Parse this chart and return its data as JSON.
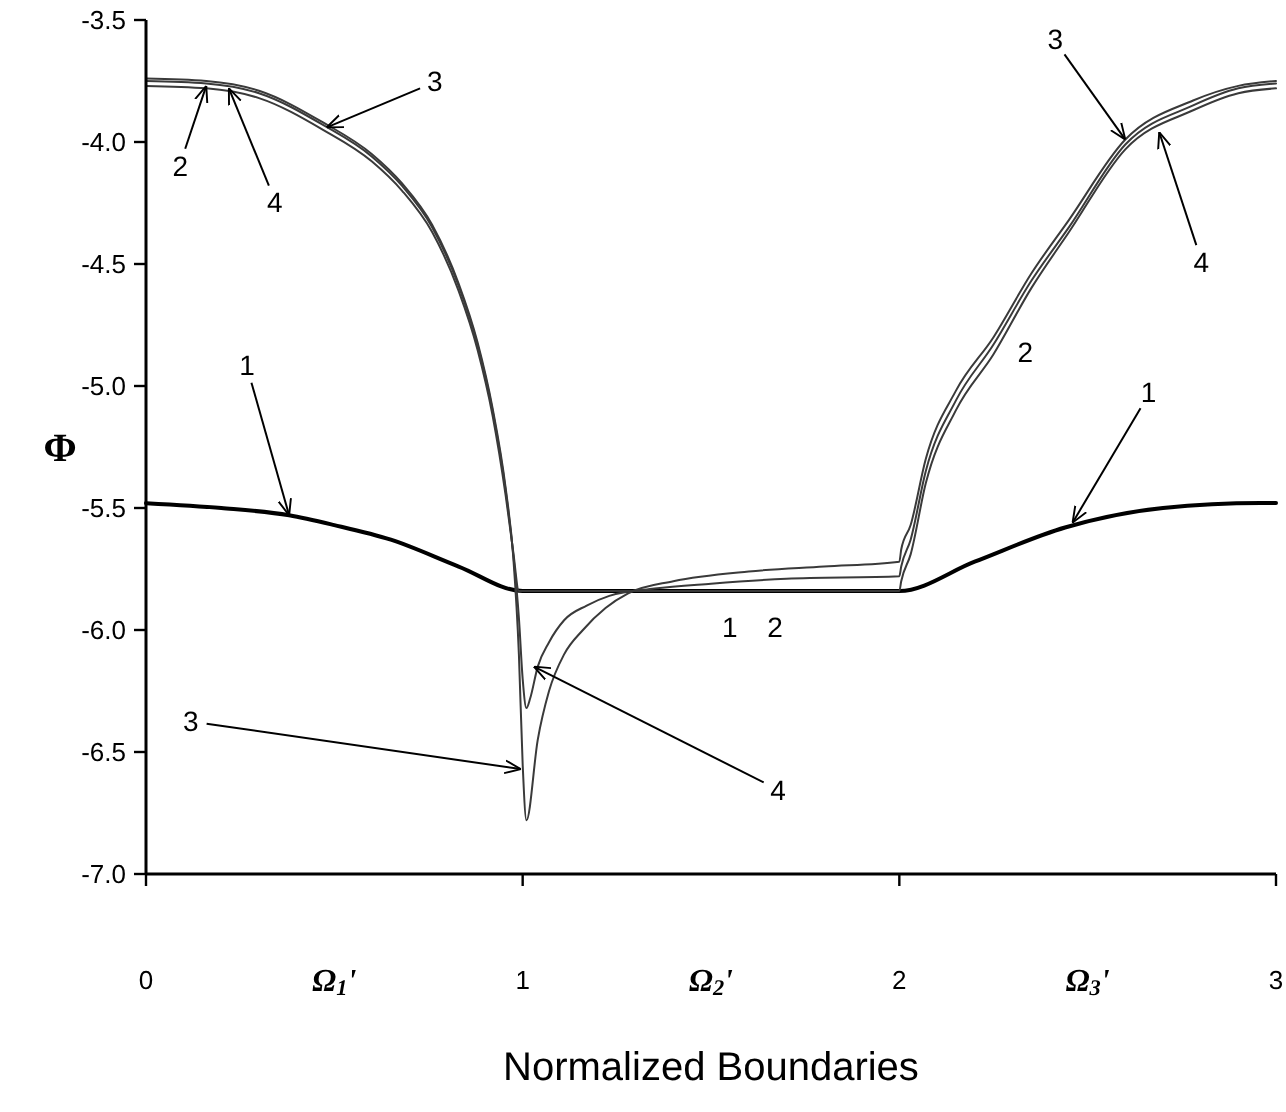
{
  "chart_data": {
    "type": "line",
    "xlabel": "Normalized Boundaries",
    "ylabel": "Φ",
    "xlim": [
      0,
      3
    ],
    "ylim": [
      -7.0,
      -3.5
    ],
    "xticks": [
      0,
      {
        "value": 0.5,
        "label": "Ω$_{1}$'"
      },
      1,
      {
        "value": 1.5,
        "label": "Ω$_{2}$'"
      },
      2,
      {
        "value": 2.5,
        "label": "Ω$_{3}$'"
      },
      3
    ],
    "yticks": [
      {
        "value": -7.0,
        "label": "-7.0"
      },
      -6.5,
      {
        "value": -6.0,
        "label": "-6.0"
      },
      -5.5,
      {
        "value": -5.0,
        "label": "-5.0"
      },
      -4.5,
      {
        "value": -4.0,
        "label": "-4.0"
      },
      -3.5
    ],
    "grid": false,
    "marker": "none",
    "line_style": "solid",
    "series": [
      {
        "color": "#000000",
        "x": [
          0,
          0.2,
          0.38,
          0.5,
          0.65,
          0.83,
          1,
          1.5,
          2,
          2.2,
          2.44,
          2.7,
          2.96,
          3
        ],
        "values": [
          -5.48,
          -5.5,
          -5.53,
          -5.57,
          -5.63,
          -5.74,
          -5.84,
          -5.84,
          -5.84,
          -5.72,
          -5.58,
          -5.5,
          -5.48,
          -5.48
        ]
      },
      {
        "color": "#3a3a3a",
        "x": [
          0,
          0.16,
          0.3,
          0.47,
          0.6,
          0.68,
          0.76,
          0.83,
          0.88,
          0.92,
          0.955,
          0.975,
          0.99,
          1.5,
          2,
          2.005,
          2.03,
          2.07,
          2.15,
          2.25,
          2.35,
          2.45,
          2.6,
          2.78,
          2.9,
          3
        ],
        "values": [
          -3.77,
          -3.78,
          -3.82,
          -3.95,
          -4.08,
          -4.2,
          -4.37,
          -4.61,
          -4.85,
          -5.12,
          -5.45,
          -5.68,
          -5.84,
          -5.84,
          -5.84,
          -5.8,
          -5.69,
          -5.4,
          -5.1,
          -4.87,
          -4.6,
          -4.37,
          -4.03,
          -3.87,
          -3.8,
          -3.78
        ]
      },
      {
        "color": "#3a3a3a",
        "x": [
          0,
          0.16,
          0.3,
          0.47,
          0.6,
          0.68,
          0.76,
          0.83,
          0.88,
          0.92,
          0.955,
          0.975,
          0.99,
          1.0,
          1.01,
          1.04,
          1.07,
          1.11,
          1.16,
          1.22,
          1.28,
          1.4,
          1.6,
          1.8,
          2,
          2.005,
          2.03,
          2.07,
          2.15,
          2.25,
          2.35,
          2.45,
          2.6,
          2.78,
          2.9,
          3
        ],
        "values": [
          -3.74,
          -3.75,
          -3.79,
          -3.92,
          -4.05,
          -4.17,
          -4.34,
          -4.58,
          -4.82,
          -5.09,
          -5.42,
          -5.7,
          -6.1,
          -6.55,
          -6.78,
          -6.45,
          -6.25,
          -6.1,
          -6.0,
          -5.91,
          -5.85,
          -5.8,
          -5.76,
          -5.74,
          -5.72,
          -5.67,
          -5.57,
          -5.3,
          -5.02,
          -4.8,
          -4.54,
          -4.32,
          -3.99,
          -3.83,
          -3.77,
          -3.75
        ]
      },
      {
        "color": "#3a3a3a",
        "x": [
          0,
          0.16,
          0.3,
          0.47,
          0.6,
          0.68,
          0.76,
          0.83,
          0.88,
          0.92,
          0.955,
          0.975,
          0.99,
          1.0,
          1.01,
          1.02,
          1.04,
          1.07,
          1.11,
          1.17,
          1.23,
          1.35,
          1.5,
          1.7,
          2,
          2.005,
          2.03,
          2.07,
          2.15,
          2.25,
          2.35,
          2.45,
          2.6,
          2.78,
          2.9,
          3
        ],
        "values": [
          -3.75,
          -3.76,
          -3.8,
          -3.93,
          -4.06,
          -4.18,
          -4.35,
          -4.59,
          -4.83,
          -5.1,
          -5.43,
          -5.69,
          -5.95,
          -6.2,
          -6.32,
          -6.28,
          -6.15,
          -6.05,
          -5.96,
          -5.9,
          -5.86,
          -5.83,
          -5.81,
          -5.79,
          -5.78,
          -5.74,
          -5.63,
          -5.35,
          -5.06,
          -4.83,
          -4.57,
          -4.35,
          -4.01,
          -3.85,
          -3.78,
          -3.76
        ]
      }
    ],
    "annotations": [
      {
        "text": "3",
        "x": 0.48,
        "y": -3.94
      },
      {
        "text": "2",
        "x": 0.16,
        "y": -3.77
      },
      {
        "text": "4",
        "x": 0.22,
        "y": -3.78
      },
      {
        "text": "1",
        "x": 0.38,
        "y": -5.53
      },
      {
        "text": "3",
        "x": 0.995,
        "y": -6.57
      },
      {
        "text": "4",
        "x": 1.03,
        "y": -6.15
      },
      {
        "text": "1",
        "x": 1.55,
        "y": -5.84
      },
      {
        "text": "2",
        "x": 1.67,
        "y": -5.84
      },
      {
        "text": "3",
        "x": 2.6,
        "y": -3.99
      },
      {
        "text": "4",
        "x": 2.69,
        "y": -3.96
      },
      {
        "text": "2",
        "x": 2.26,
        "y": -4.86
      },
      {
        "text": "1",
        "x": 2.46,
        "y": -5.56
      }
    ]
  }
}
